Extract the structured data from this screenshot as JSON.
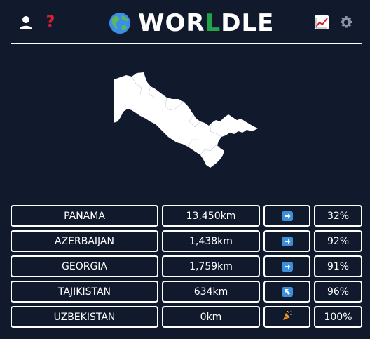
{
  "header": {
    "title_prefix": "WOR",
    "title_accent": "L",
    "title_suffix": "DLE",
    "accent_color": "#22a34a",
    "help_label": "?",
    "icons": [
      "user-icon",
      "help-icon",
      "globe-icon",
      "stats-icon",
      "gear-icon"
    ]
  },
  "target_country": "Uzbekistan",
  "guesses": [
    {
      "country": "PANAMA",
      "distance": "13,450km",
      "direction": "east",
      "proximity": "32%"
    },
    {
      "country": "AZERBAIJAN",
      "distance": "1,438km",
      "direction": "east",
      "proximity": "92%"
    },
    {
      "country": "GEORGIA",
      "distance": "1,759km",
      "direction": "east",
      "proximity": "91%"
    },
    {
      "country": "TAJIKISTAN",
      "distance": "634km",
      "direction": "northwest",
      "proximity": "96%"
    },
    {
      "country": "UZBEKISTAN",
      "distance": "0km",
      "direction": "correct",
      "proximity": "100%"
    }
  ]
}
